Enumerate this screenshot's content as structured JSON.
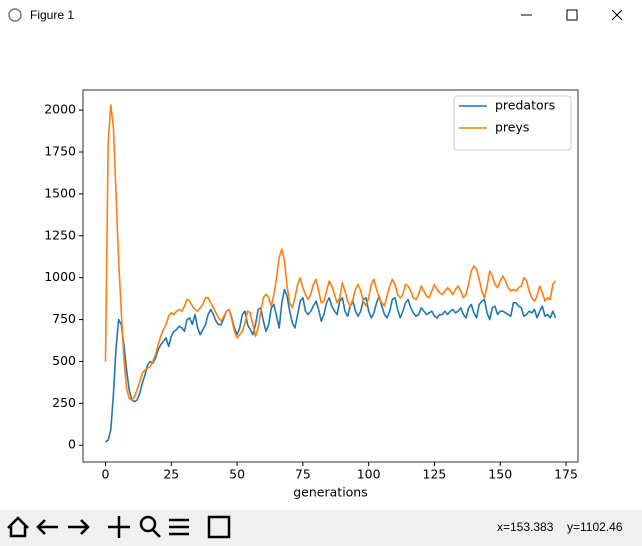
{
  "window": {
    "title": "Figure 1"
  },
  "status": {
    "x": "x=153.383",
    "y": "y=1102.46"
  },
  "chart_data": {
    "type": "line",
    "xlabel": "generations",
    "x": [
      0,
      1,
      2,
      3,
      4,
      5,
      6,
      7,
      8,
      9,
      10,
      11,
      12,
      13,
      14,
      15,
      16,
      17,
      18,
      19,
      20,
      21,
      22,
      23,
      24,
      25,
      26,
      27,
      28,
      29,
      30,
      31,
      32,
      33,
      34,
      35,
      36,
      37,
      38,
      39,
      40,
      41,
      42,
      43,
      44,
      45,
      46,
      47,
      48,
      49,
      50,
      51,
      52,
      53,
      54,
      55,
      56,
      57,
      58,
      59,
      60,
      61,
      62,
      63,
      64,
      65,
      66,
      67,
      68,
      69,
      70,
      71,
      72,
      73,
      74,
      75,
      76,
      77,
      78,
      79,
      80,
      81,
      82,
      83,
      84,
      85,
      86,
      87,
      88,
      89,
      90,
      91,
      92,
      93,
      94,
      95,
      96,
      97,
      98,
      99,
      100,
      101,
      102,
      103,
      104,
      105,
      106,
      107,
      108,
      109,
      110,
      111,
      112,
      113,
      114,
      115,
      116,
      117,
      118,
      119,
      120,
      121,
      122,
      123,
      124,
      125,
      126,
      127,
      128,
      129,
      130,
      131,
      132,
      133,
      134,
      135,
      136,
      137,
      138,
      139,
      140,
      141,
      142,
      143,
      144,
      145,
      146,
      147,
      148,
      149,
      150,
      151,
      152,
      153,
      154,
      155,
      156,
      157,
      158,
      159,
      160,
      161,
      162,
      163,
      164,
      165,
      166,
      167,
      168,
      169,
      170,
      171
    ],
    "series": [
      {
        "name": "predators",
        "color": "#1f77b4",
        "values": [
          20,
          30,
          90,
          300,
          580,
          750,
          720,
          600,
          450,
          330,
          270,
          260,
          270,
          310,
          370,
          420,
          480,
          500,
          490,
          520,
          570,
          600,
          620,
          640,
          590,
          650,
          680,
          690,
          710,
          700,
          680,
          750,
          760,
          720,
          780,
          700,
          660,
          690,
          720,
          780,
          810,
          780,
          740,
          720,
          720,
          760,
          800,
          810,
          760,
          700,
          660,
          700,
          780,
          800,
          720,
          690,
          660,
          720,
          810,
          820,
          740,
          680,
          720,
          820,
          840,
          770,
          700,
          850,
          930,
          890,
          800,
          730,
          700,
          780,
          860,
          880,
          800,
          780,
          800,
          830,
          860,
          810,
          740,
          780,
          850,
          880,
          830,
          800,
          780,
          860,
          880,
          800,
          770,
          830,
          860,
          800,
          770,
          800,
          870,
          880,
          800,
          760,
          790,
          850,
          890,
          830,
          780,
          760,
          800,
          870,
          880,
          810,
          760,
          800,
          850,
          870,
          820,
          790,
          770,
          780,
          820,
          800,
          780,
          790,
          800,
          770,
          760,
          780,
          780,
          800,
          780,
          800,
          810,
          790,
          800,
          820,
          780,
          760,
          820,
          840,
          790,
          760,
          840,
          860,
          870,
          790,
          750,
          820,
          830,
          780,
          800,
          800,
          790,
          780,
          770,
          850,
          850,
          830,
          820,
          770,
          780,
          800,
          790,
          810,
          760,
          800,
          830,
          770,
          780,
          760,
          800,
          760
        ]
      },
      {
        "name": "preys",
        "color": "#ff7f0e",
        "values": [
          500,
          1800,
          2030,
          1900,
          1500,
          1100,
          800,
          520,
          340,
          280,
          270,
          290,
          330,
          380,
          430,
          450,
          460,
          470,
          500,
          540,
          600,
          650,
          690,
          720,
          770,
          790,
          780,
          800,
          810,
          800,
          830,
          870,
          860,
          830,
          810,
          800,
          820,
          840,
          880,
          880,
          850,
          820,
          790,
          760,
          740,
          770,
          800,
          810,
          750,
          680,
          640,
          660,
          680,
          730,
          800,
          790,
          720,
          650,
          700,
          800,
          880,
          900,
          880,
          830,
          900,
          1000,
          1120,
          1170,
          1100,
          950,
          850,
          820,
          880,
          960,
          1000,
          940,
          900,
          870,
          900,
          960,
          990,
          920,
          850,
          860,
          920,
          980,
          950,
          900,
          850,
          880,
          970,
          920,
          860,
          830,
          870,
          930,
          960,
          920,
          860,
          830,
          880,
          960,
          990,
          930,
          880,
          850,
          830,
          890,
          950,
          990,
          960,
          900,
          880,
          900,
          960,
          950,
          920,
          880,
          870,
          900,
          950,
          920,
          890,
          880,
          920,
          960,
          930,
          910,
          900,
          920,
          940,
          920,
          900,
          930,
          950,
          920,
          880,
          900,
          960,
          1040,
          1070,
          1050,
          990,
          920,
          880,
          950,
          1040,
          1010,
          960,
          940,
          980,
          1010,
          980,
          940,
          920,
          930,
          920,
          940,
          950,
          1000,
          980,
          920,
          880,
          860,
          890,
          950,
          910,
          860,
          880,
          870,
          960,
          980
        ]
      }
    ],
    "xlim": [
      -8.55,
      179.55
    ],
    "xticks": [
      0,
      25,
      50,
      75,
      100,
      125,
      150,
      175
    ],
    "ylim": [
      -100,
      2120
    ],
    "yticks": [
      0,
      250,
      500,
      750,
      1000,
      1250,
      1500,
      1750,
      2000
    ],
    "legend": "upper right"
  }
}
